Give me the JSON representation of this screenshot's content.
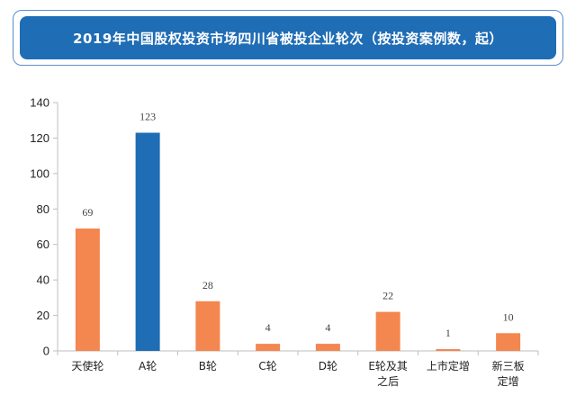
{
  "title": "2019年中国股权投资市场四川省被投企业轮次（按投资案例数，起）",
  "chart_data": {
    "type": "bar",
    "categories": [
      "天使轮",
      "A轮",
      "B轮",
      "C轮",
      "D轮",
      "E轮及其之后",
      "上市定增",
      "新三板定增"
    ],
    "category_lines": [
      [
        "天使轮"
      ],
      [
        "A轮"
      ],
      [
        "B轮"
      ],
      [
        "C轮"
      ],
      [
        "D轮"
      ],
      [
        "E轮及其",
        "之后"
      ],
      [
        "上市定增"
      ],
      [
        "新三板",
        "定增"
      ]
    ],
    "values": [
      69,
      123,
      28,
      4,
      4,
      22,
      1,
      10
    ],
    "ylim": [
      0,
      140
    ],
    "yticks": [
      0,
      20,
      40,
      60,
      80,
      100,
      120,
      140
    ],
    "grid": false,
    "colors": {
      "default": "#f4864f",
      "highlight": "#1f6db5",
      "highlight_category": "A轮"
    }
  }
}
